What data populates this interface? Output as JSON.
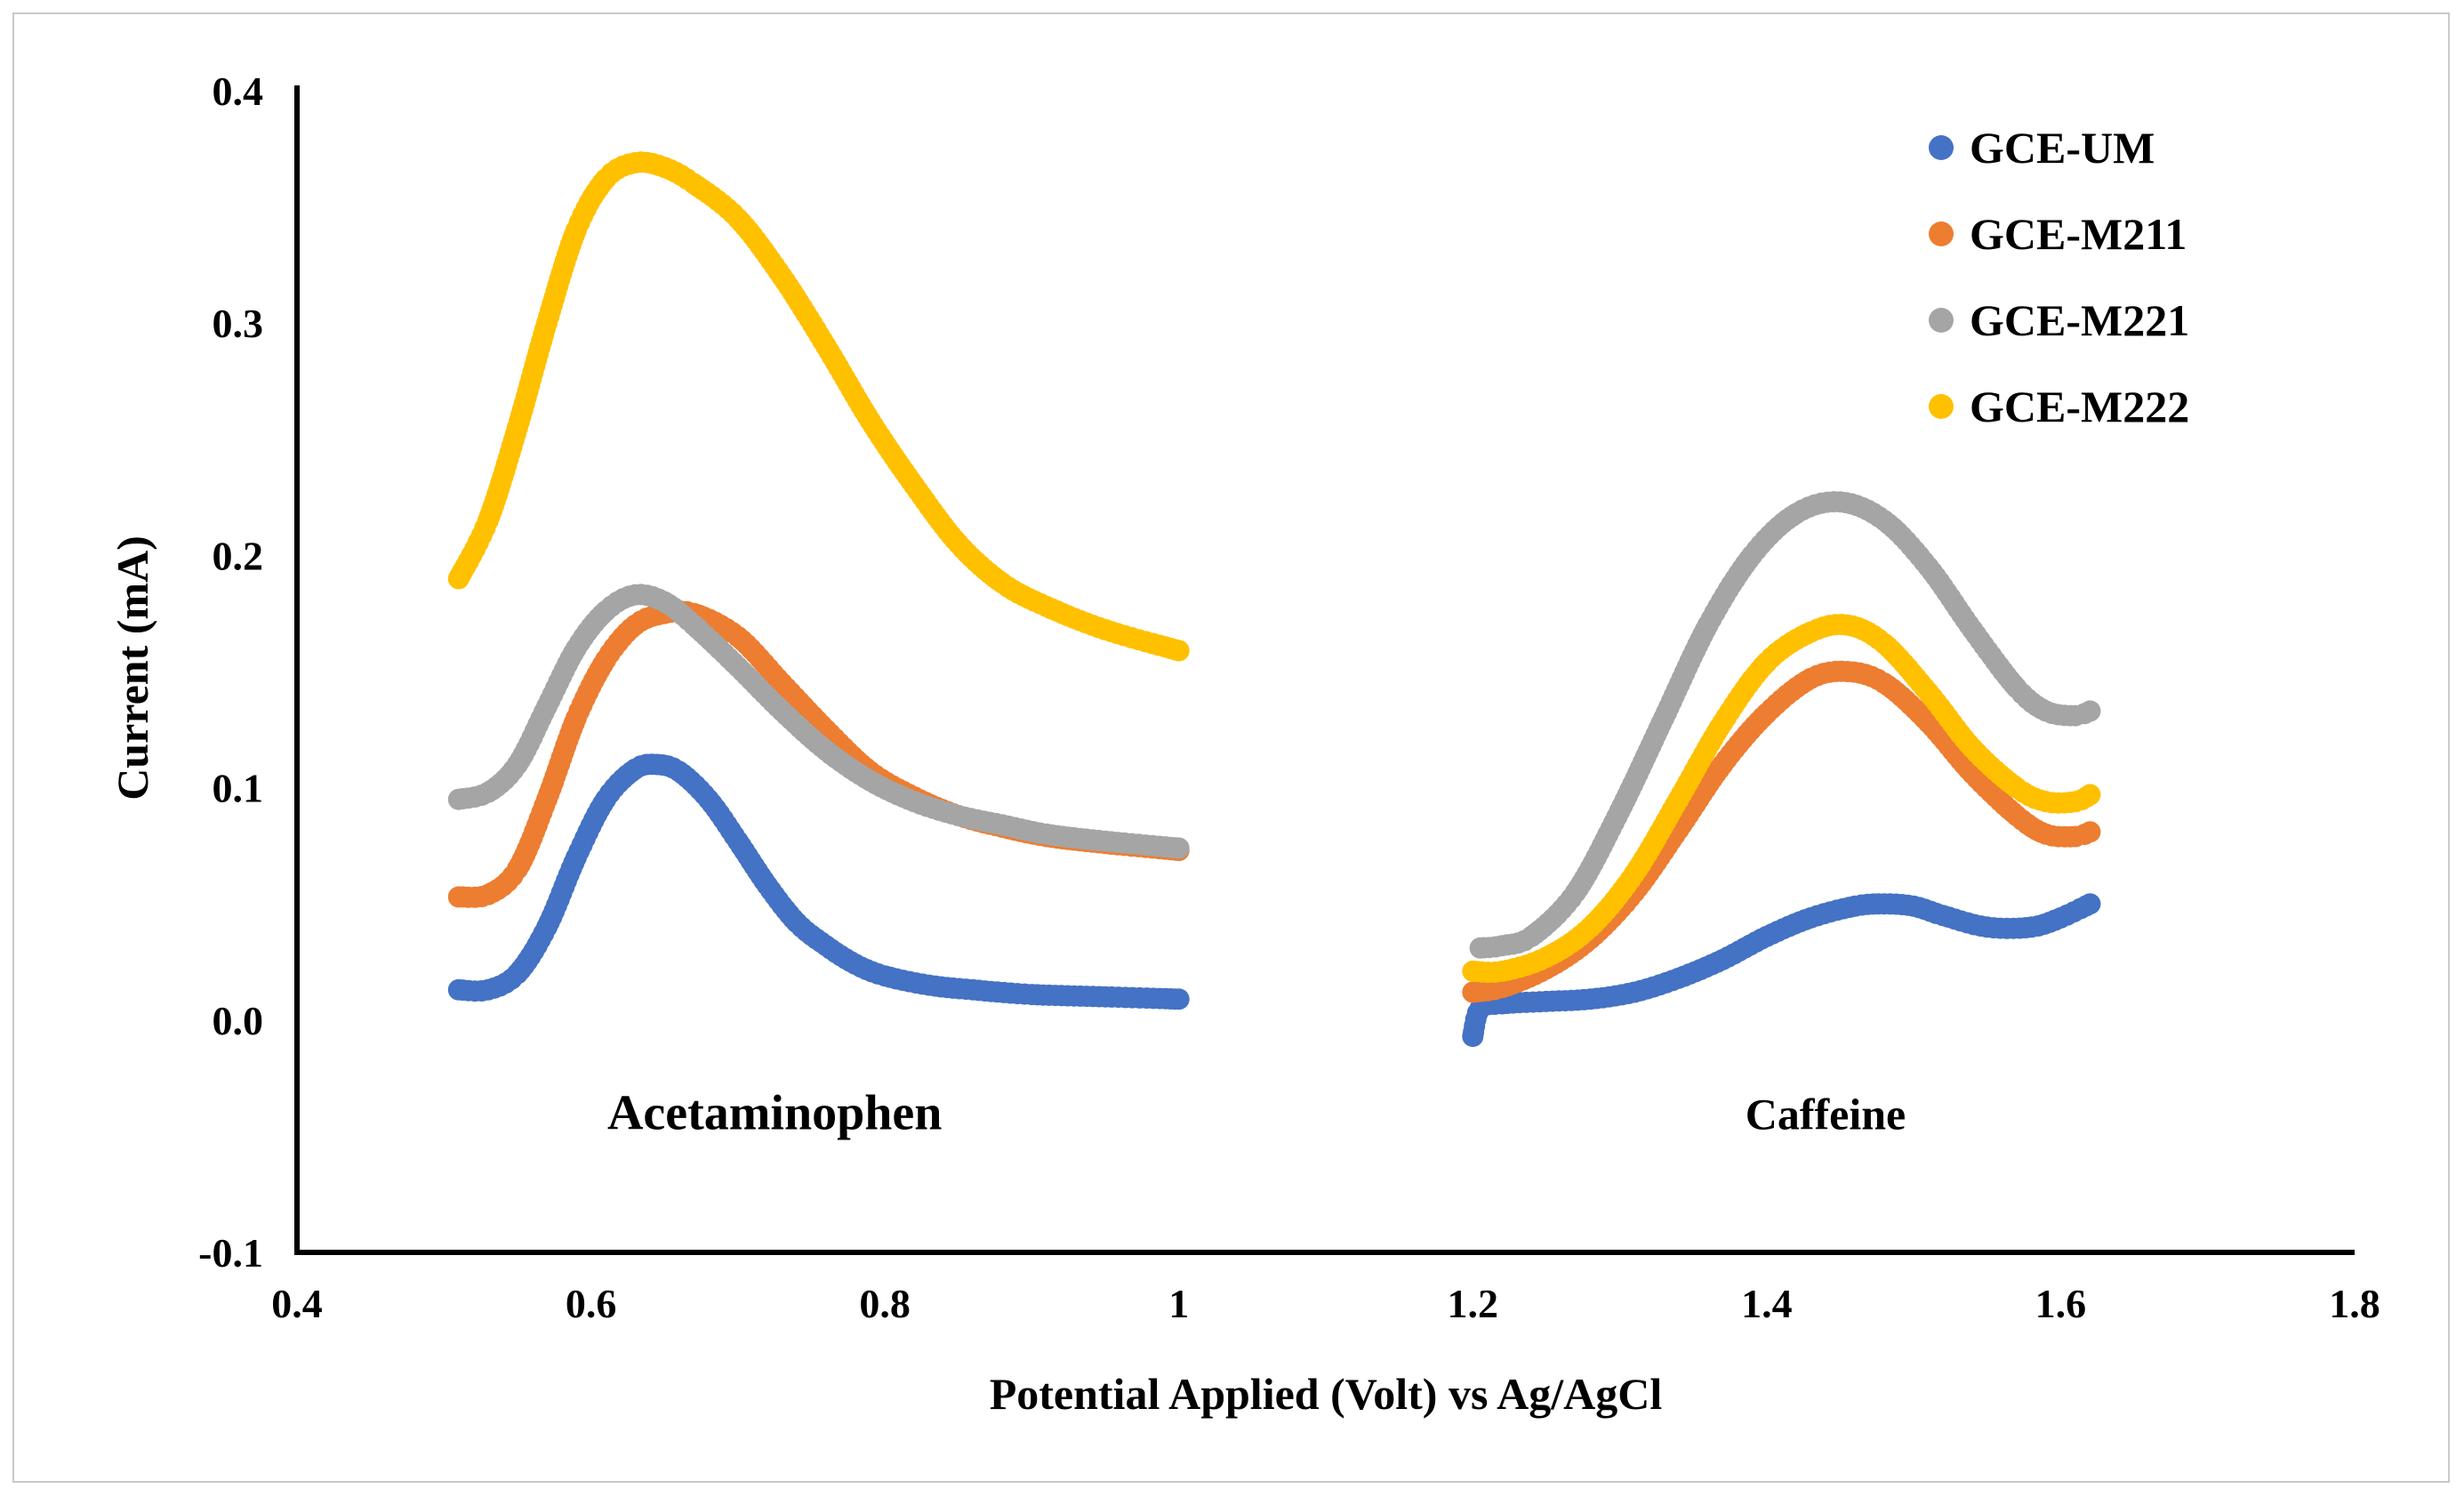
{
  "chart_data": {
    "type": "scatter",
    "title": "",
    "xlabel": "Potential Applied (Volt) vs Ag/AgCl",
    "ylabel": "Current (mA)",
    "xlim": [
      0.4,
      1.8
    ],
    "ylim": [
      -0.1,
      0.4
    ],
    "xticks": [
      0.4,
      0.6,
      0.8,
      1,
      1.2,
      1.4,
      1.6,
      1.8
    ],
    "xtick_labels": [
      "0.4",
      "0.6",
      "0.8",
      "1",
      "1.2",
      "1.4",
      "1.6",
      "1.8"
    ],
    "yticks": [
      -0.1,
      0.0,
      0.1,
      0.2,
      0.3,
      0.4
    ],
    "ytick_labels": [
      "-0.1",
      "0.0",
      "0.1",
      "0.2",
      "0.3",
      "0.4"
    ],
    "grid": false,
    "legend_position": "top-right",
    "annotations": [
      {
        "text": "Acetaminophen",
        "x": 0.725,
        "y": -0.04
      },
      {
        "text": "Caffeine",
        "x": 1.44,
        "y": -0.04
      }
    ],
    "series": [
      {
        "name": "GCE-UM",
        "color": "#4472C4",
        "segments": [
          [
            [
              0.51,
              0.013
            ],
            [
              0.53,
              0.013
            ],
            [
              0.55,
              0.02
            ],
            [
              0.57,
              0.04
            ],
            [
              0.59,
              0.07
            ],
            [
              0.61,
              0.095
            ],
            [
              0.63,
              0.108
            ],
            [
              0.645,
              0.11
            ],
            [
              0.66,
              0.107
            ],
            [
              0.68,
              0.095
            ],
            [
              0.7,
              0.077
            ],
            [
              0.72,
              0.058
            ],
            [
              0.74,
              0.042
            ],
            [
              0.76,
              0.032
            ],
            [
              0.78,
              0.024
            ],
            [
              0.8,
              0.019
            ],
            [
              0.83,
              0.015
            ],
            [
              0.86,
              0.013
            ],
            [
              0.9,
              0.011
            ],
            [
              0.95,
              0.01
            ],
            [
              1.0,
              0.009
            ]
          ],
          [
            [
              1.2,
              -0.007
            ],
            [
              1.205,
              0.005
            ],
            [
              1.22,
              0.007
            ],
            [
              1.25,
              0.008
            ],
            [
              1.28,
              0.009
            ],
            [
              1.31,
              0.012
            ],
            [
              1.34,
              0.018
            ],
            [
              1.37,
              0.026
            ],
            [
              1.4,
              0.036
            ],
            [
              1.43,
              0.044
            ],
            [
              1.46,
              0.049
            ],
            [
              1.48,
              0.05
            ],
            [
              1.5,
              0.049
            ],
            [
              1.52,
              0.045
            ],
            [
              1.55,
              0.04
            ],
            [
              1.58,
              0.04
            ],
            [
              1.6,
              0.044
            ],
            [
              1.62,
              0.05
            ]
          ]
        ]
      },
      {
        "name": "GCE-M211",
        "color": "#ED7D31",
        "segments": [
          [
            [
              0.51,
              0.053
            ],
            [
              0.53,
              0.054
            ],
            [
              0.55,
              0.065
            ],
            [
              0.57,
              0.095
            ],
            [
              0.59,
              0.13
            ],
            [
              0.61,
              0.155
            ],
            [
              0.63,
              0.17
            ],
            [
              0.65,
              0.175
            ],
            [
              0.67,
              0.175
            ],
            [
              0.7,
              0.165
            ],
            [
              0.73,
              0.145
            ],
            [
              0.76,
              0.125
            ],
            [
              0.79,
              0.107
            ],
            [
              0.82,
              0.096
            ],
            [
              0.85,
              0.088
            ],
            [
              0.88,
              0.083
            ],
            [
              0.91,
              0.079
            ],
            [
              0.95,
              0.076
            ],
            [
              1.0,
              0.073
            ]
          ],
          [
            [
              1.2,
              0.012
            ],
            [
              1.22,
              0.014
            ],
            [
              1.25,
              0.022
            ],
            [
              1.28,
              0.035
            ],
            [
              1.31,
              0.055
            ],
            [
              1.34,
              0.082
            ],
            [
              1.37,
              0.11
            ],
            [
              1.4,
              0.132
            ],
            [
              1.43,
              0.147
            ],
            [
              1.455,
              0.15
            ],
            [
              1.48,
              0.145
            ],
            [
              1.51,
              0.128
            ],
            [
              1.54,
              0.106
            ],
            [
              1.57,
              0.088
            ],
            [
              1.59,
              0.08
            ],
            [
              1.61,
              0.079
            ],
            [
              1.62,
              0.081
            ]
          ]
        ]
      },
      {
        "name": "GCE-M221",
        "color": "#A5A5A5",
        "segments": [
          [
            [
              0.51,
              0.095
            ],
            [
              0.53,
              0.098
            ],
            [
              0.55,
              0.11
            ],
            [
              0.57,
              0.135
            ],
            [
              0.59,
              0.16
            ],
            [
              0.61,
              0.176
            ],
            [
              0.63,
              0.183
            ],
            [
              0.65,
              0.18
            ],
            [
              0.67,
              0.17
            ],
            [
              0.7,
              0.152
            ],
            [
              0.73,
              0.133
            ],
            [
              0.76,
              0.116
            ],
            [
              0.79,
              0.103
            ],
            [
              0.82,
              0.094
            ],
            [
              0.85,
              0.088
            ],
            [
              0.88,
              0.084
            ],
            [
              0.91,
              0.08
            ],
            [
              0.95,
              0.077
            ],
            [
              1.0,
              0.074
            ]
          ],
          [
            [
              1.205,
              0.031
            ],
            [
              1.22,
              0.032
            ],
            [
              1.24,
              0.036
            ],
            [
              1.27,
              0.055
            ],
            [
              1.3,
              0.09
            ],
            [
              1.33,
              0.13
            ],
            [
              1.36,
              0.17
            ],
            [
              1.39,
              0.2
            ],
            [
              1.42,
              0.218
            ],
            [
              1.45,
              0.223
            ],
            [
              1.48,
              0.215
            ],
            [
              1.51,
              0.195
            ],
            [
              1.54,
              0.168
            ],
            [
              1.57,
              0.143
            ],
            [
              1.59,
              0.133
            ],
            [
              1.61,
              0.131
            ],
            [
              1.62,
              0.133
            ]
          ]
        ]
      },
      {
        "name": "GCE-M222",
        "color": "#FFC000",
        "segments": [
          [
            [
              0.51,
              0.19
            ],
            [
              0.53,
              0.215
            ],
            [
              0.55,
              0.255
            ],
            [
              0.57,
              0.3
            ],
            [
              0.59,
              0.34
            ],
            [
              0.61,
              0.362
            ],
            [
              0.63,
              0.369
            ],
            [
              0.65,
              0.367
            ],
            [
              0.67,
              0.36
            ],
            [
              0.7,
              0.345
            ],
            [
              0.73,
              0.32
            ],
            [
              0.76,
              0.29
            ],
            [
              0.79,
              0.258
            ],
            [
              0.82,
              0.23
            ],
            [
              0.85,
              0.205
            ],
            [
              0.88,
              0.188
            ],
            [
              0.91,
              0.178
            ],
            [
              0.95,
              0.168
            ],
            [
              1.0,
              0.159
            ]
          ],
          [
            [
              1.2,
              0.021
            ],
            [
              1.22,
              0.021
            ],
            [
              1.25,
              0.027
            ],
            [
              1.28,
              0.04
            ],
            [
              1.31,
              0.063
            ],
            [
              1.34,
              0.095
            ],
            [
              1.37,
              0.128
            ],
            [
              1.4,
              0.154
            ],
            [
              1.43,
              0.167
            ],
            [
              1.455,
              0.17
            ],
            [
              1.48,
              0.162
            ],
            [
              1.51,
              0.141
            ],
            [
              1.54,
              0.117
            ],
            [
              1.57,
              0.1
            ],
            [
              1.59,
              0.094
            ],
            [
              1.61,
              0.094
            ],
            [
              1.62,
              0.097
            ]
          ]
        ]
      }
    ]
  }
}
